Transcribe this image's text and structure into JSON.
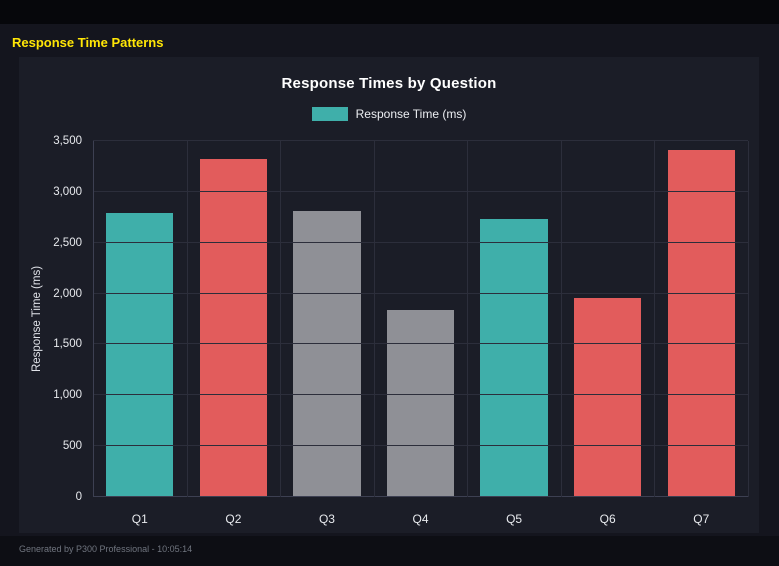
{
  "page": {
    "title": "Response Time Patterns",
    "footer": "Generated by P300 Professional - 10:05:14"
  },
  "chart": {
    "title": "Response Times by Question",
    "ylabel": "Response Time (ms)",
    "legend": {
      "label": "Response Time (ms)",
      "color": "#3fafaa"
    }
  },
  "chart_data": {
    "type": "bar",
    "title": "Response Times by Question",
    "categories": [
      "Q1",
      "Q2",
      "Q3",
      "Q4",
      "Q5",
      "Q6",
      "Q7"
    ],
    "series": [
      {
        "name": "Response Time (ms)",
        "values": [
          2790,
          3320,
          2810,
          1840,
          2730,
          1960,
          3410
        ]
      }
    ],
    "values": [
      2790,
      3320,
      2810,
      1840,
      2730,
      1960,
      3410
    ],
    "bar_colors": [
      "#3fafaa",
      "#e25c5c",
      "#8f9096",
      "#8f9096",
      "#3fafaa",
      "#e25c5c",
      "#e25c5c"
    ],
    "xlabel": "",
    "ylabel": "Response Time (ms)",
    "ylim": [
      0,
      3500
    ],
    "ytick_step": 500,
    "ytick_labels": [
      "0",
      "500",
      "1,000",
      "1,500",
      "2,000",
      "2,500",
      "3,000",
      "3,500"
    ],
    "legend_position": "top",
    "grid": true
  },
  "colors": {
    "page_bg": "#14151e",
    "panel_bg": "#1b1d27",
    "title_yellow": "#ffe606",
    "teal": "#3fafaa",
    "red": "#e25c5c",
    "gray": "#8f9096",
    "gridline": "#2c2e3b"
  }
}
